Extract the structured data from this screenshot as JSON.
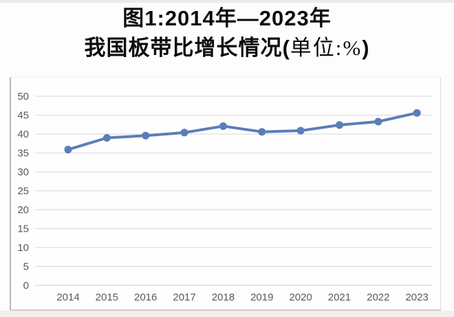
{
  "title": {
    "line1": "图1:2014年—2023年",
    "line2_main": "我国板带比增长情况(",
    "line2_unit": "单位:%",
    "line2_close": ")"
  },
  "chart_data": {
    "type": "line",
    "title": "图1:2014年—2023年我国板带比增长情况(单位:%)",
    "xlabel": "",
    "ylabel": "",
    "categories": [
      "2014",
      "2015",
      "2016",
      "2017",
      "2018",
      "2019",
      "2020",
      "2021",
      "2022",
      "2023"
    ],
    "values": [
      35.9,
      39.0,
      39.6,
      40.4,
      42.1,
      40.6,
      40.9,
      42.4,
      43.3,
      45.6
    ],
    "ylim": [
      0,
      50
    ],
    "yticks": [
      0,
      5,
      10,
      15,
      20,
      25,
      30,
      35,
      40,
      45,
      50
    ],
    "grid": true,
    "legend": false,
    "marker": "circle",
    "line_color": "#5b7db8",
    "marker_color": "#5b7db8",
    "gridline_color": "#dedede",
    "zero_line_color": "#d4d4d4",
    "tick_label_color": "#595959"
  }
}
